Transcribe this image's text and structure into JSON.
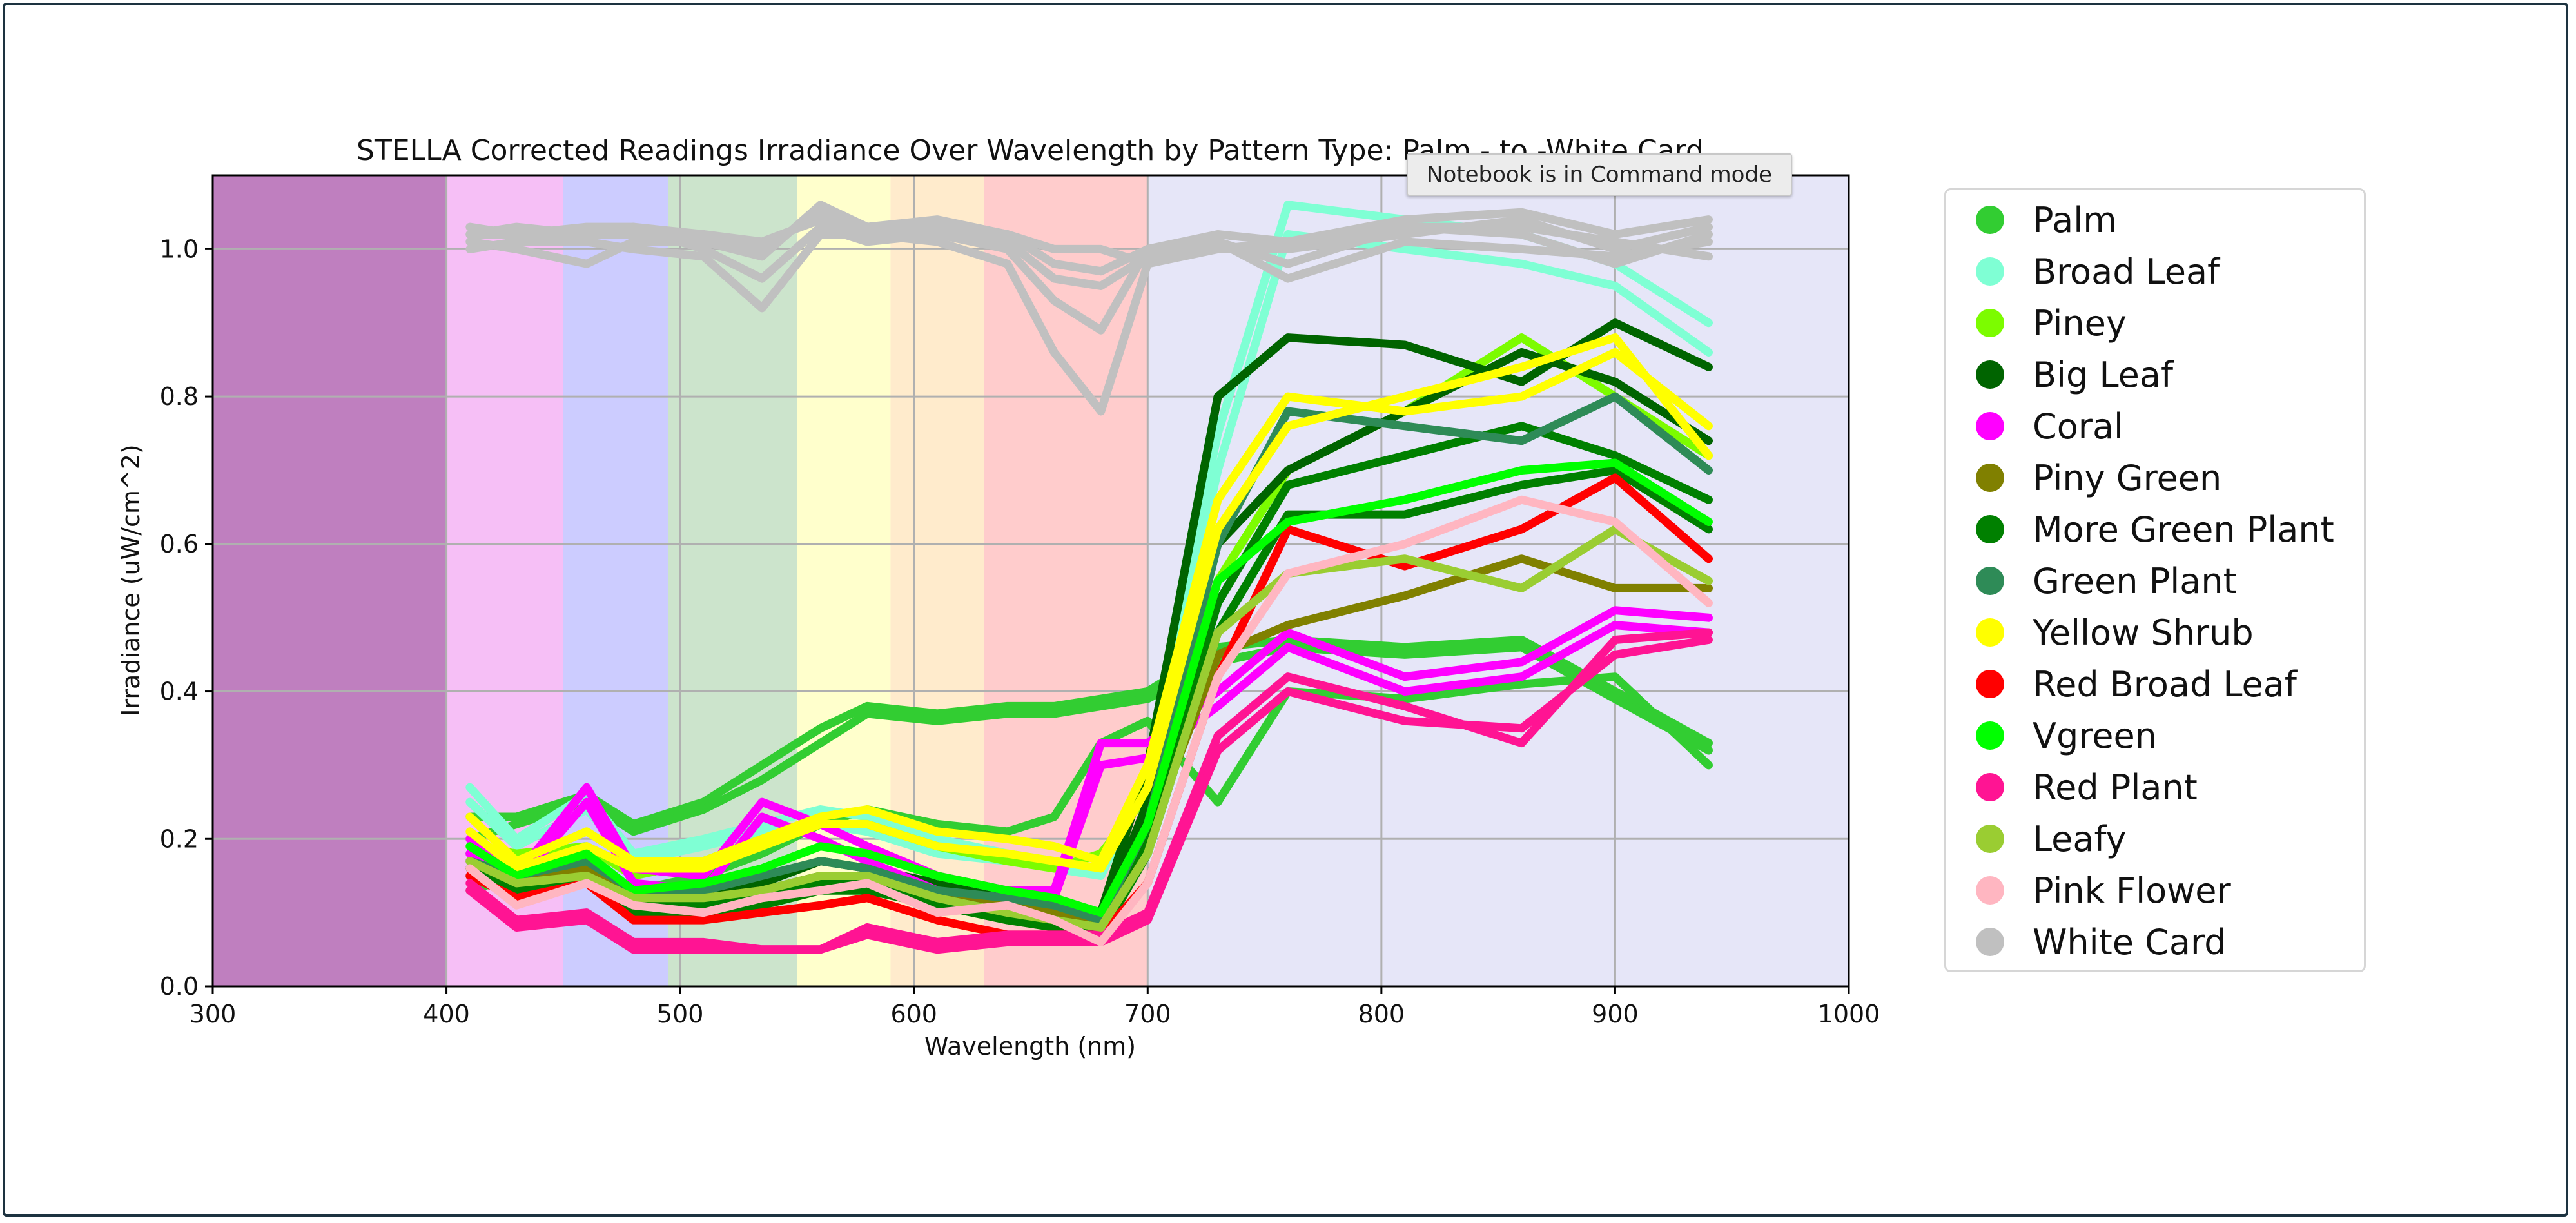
{
  "tooltip": "Notebook is in Command mode",
  "chart_data": {
    "type": "line",
    "title": "STELLA Corrected Readings Irradiance Over Wavelength by Pattern Type: Palm - to -White Card",
    "xlabel": "Wavelength (nm)",
    "ylabel": "Irradiance (uW/cm^2)",
    "xlim": [
      300,
      1000
    ],
    "ylim": [
      0,
      1.1
    ],
    "xticks": [
      300,
      400,
      500,
      600,
      700,
      800,
      900,
      1000
    ],
    "yticks": [
      0.0,
      0.2,
      0.4,
      0.6,
      0.8,
      1.0
    ],
    "grid": true,
    "legend_placement": "right, outside plot",
    "background_bands": [
      {
        "from": 300,
        "to": 400,
        "color": "#bf7fbf"
      },
      {
        "from": 400,
        "to": 450,
        "color": "#f6bff6"
      },
      {
        "from": 450,
        "to": 495,
        "color": "#ccccff"
      },
      {
        "from": 495,
        "to": 550,
        "color": "#cce4cc"
      },
      {
        "from": 550,
        "to": 590,
        "color": "#ffffcc"
      },
      {
        "from": 590,
        "to": 630,
        "color": "#ffebcc"
      },
      {
        "from": 630,
        "to": 700,
        "color": "#ffcccc"
      },
      {
        "from": 700,
        "to": 1000,
        "color": "#e6e6f8"
      }
    ],
    "x": [
      410,
      430,
      460,
      480,
      510,
      535,
      560,
      580,
      610,
      640,
      660,
      680,
      700,
      730,
      760,
      810,
      860,
      900,
      940
    ],
    "series": [
      {
        "name": "Palm",
        "color": "#32cd32",
        "lines": [
          [
            0.23,
            0.23,
            0.26,
            0.22,
            0.25,
            0.3,
            0.35,
            0.38,
            0.37,
            0.38,
            0.38,
            0.39,
            0.4,
            0.46,
            0.47,
            0.46,
            0.47,
            0.4,
            0.33
          ],
          [
            0.2,
            0.22,
            0.25,
            0.21,
            0.24,
            0.28,
            0.33,
            0.37,
            0.36,
            0.37,
            0.37,
            0.38,
            0.39,
            0.44,
            0.46,
            0.45,
            0.46,
            0.39,
            0.32
          ],
          [
            0.13,
            0.15,
            0.16,
            0.13,
            0.15,
            0.18,
            0.22,
            0.24,
            0.22,
            0.21,
            0.23,
            0.33,
            0.36,
            0.25,
            0.4,
            0.39,
            0.41,
            0.42,
            0.3
          ]
        ]
      },
      {
        "name": "Broad Leaf",
        "color": "#7fffd4",
        "lines": [
          [
            0.27,
            0.2,
            0.26,
            0.18,
            0.2,
            0.22,
            0.24,
            0.23,
            0.2,
            0.18,
            0.17,
            0.16,
            0.3,
            0.75,
            1.06,
            1.04,
            1.02,
            0.98,
            0.9
          ],
          [
            0.25,
            0.19,
            0.24,
            0.17,
            0.19,
            0.21,
            0.22,
            0.21,
            0.18,
            0.17,
            0.16,
            0.15,
            0.28,
            0.7,
            1.02,
            1.0,
            0.98,
            0.95,
            0.86
          ]
        ]
      },
      {
        "name": "Piney",
        "color": "#7cfc00",
        "lines": [
          [
            0.19,
            0.18,
            0.19,
            0.15,
            0.17,
            0.2,
            0.22,
            0.22,
            0.19,
            0.17,
            0.16,
            0.18,
            0.26,
            0.55,
            0.7,
            0.78,
            0.88,
            0.8,
            0.72
          ]
        ]
      },
      {
        "name": "Big Leaf",
        "color": "#006400",
        "lines": [
          [
            0.18,
            0.14,
            0.16,
            0.12,
            0.12,
            0.14,
            0.17,
            0.16,
            0.14,
            0.12,
            0.11,
            0.1,
            0.3,
            0.8,
            0.88,
            0.87,
            0.82,
            0.9,
            0.84
          ],
          [
            0.16,
            0.13,
            0.15,
            0.11,
            0.11,
            0.13,
            0.15,
            0.15,
            0.13,
            0.11,
            0.1,
            0.09,
            0.25,
            0.6,
            0.7,
            0.78,
            0.86,
            0.82,
            0.74
          ]
        ]
      },
      {
        "name": "Coral",
        "color": "#ff00ff",
        "lines": [
          [
            0.2,
            0.15,
            0.27,
            0.16,
            0.15,
            0.25,
            0.22,
            0.19,
            0.15,
            0.13,
            0.13,
            0.33,
            0.33,
            0.4,
            0.48,
            0.42,
            0.44,
            0.51,
            0.5
          ],
          [
            0.18,
            0.14,
            0.25,
            0.14,
            0.13,
            0.23,
            0.2,
            0.17,
            0.13,
            0.11,
            0.12,
            0.3,
            0.31,
            0.38,
            0.46,
            0.4,
            0.42,
            0.49,
            0.48
          ]
        ]
      },
      {
        "name": "Piny Green",
        "color": "#808000",
        "lines": [
          [
            0.17,
            0.14,
            0.16,
            0.12,
            0.12,
            0.13,
            0.15,
            0.15,
            0.12,
            0.11,
            0.1,
            0.08,
            0.2,
            0.45,
            0.49,
            0.53,
            0.58,
            0.54,
            0.54
          ]
        ]
      },
      {
        "name": "More Green Plant",
        "color": "#008000",
        "lines": [
          [
            0.16,
            0.13,
            0.15,
            0.11,
            0.11,
            0.12,
            0.14,
            0.14,
            0.12,
            0.1,
            0.09,
            0.08,
            0.2,
            0.52,
            0.68,
            0.72,
            0.76,
            0.72,
            0.66
          ],
          [
            0.15,
            0.12,
            0.14,
            0.1,
            0.1,
            0.11,
            0.13,
            0.13,
            0.11,
            0.09,
            0.08,
            0.07,
            0.18,
            0.48,
            0.64,
            0.64,
            0.68,
            0.7,
            0.62
          ]
        ]
      },
      {
        "name": "Green Plant",
        "color": "#2e8b57",
        "lines": [
          [
            0.17,
            0.15,
            0.17,
            0.13,
            0.13,
            0.15,
            0.17,
            0.16,
            0.13,
            0.12,
            0.11,
            0.09,
            0.22,
            0.6,
            0.78,
            0.76,
            0.74,
            0.8,
            0.7
          ]
        ]
      },
      {
        "name": "Yellow Shrub",
        "color": "#ffff00",
        "lines": [
          [
            0.23,
            0.17,
            0.21,
            0.17,
            0.17,
            0.2,
            0.23,
            0.24,
            0.21,
            0.2,
            0.19,
            0.17,
            0.3,
            0.66,
            0.8,
            0.78,
            0.8,
            0.86,
            0.76
          ],
          [
            0.21,
            0.16,
            0.19,
            0.16,
            0.16,
            0.19,
            0.22,
            0.22,
            0.19,
            0.18,
            0.17,
            0.16,
            0.27,
            0.62,
            0.76,
            0.8,
            0.84,
            0.88,
            0.72
          ]
        ]
      },
      {
        "name": "Red Broad Leaf",
        "color": "#ff0000",
        "lines": [
          [
            0.15,
            0.12,
            0.14,
            0.09,
            0.09,
            0.1,
            0.11,
            0.12,
            0.09,
            0.07,
            0.07,
            0.07,
            0.14,
            0.42,
            0.62,
            0.57,
            0.62,
            0.69,
            0.58
          ]
        ]
      },
      {
        "name": "Vgreen",
        "color": "#00ff00",
        "lines": [
          [
            0.19,
            0.15,
            0.18,
            0.13,
            0.14,
            0.16,
            0.19,
            0.18,
            0.15,
            0.13,
            0.12,
            0.1,
            0.22,
            0.55,
            0.63,
            0.66,
            0.7,
            0.71,
            0.63
          ]
        ]
      },
      {
        "name": "Red Plant",
        "color": "#ff1493",
        "lines": [
          [
            0.14,
            0.09,
            0.1,
            0.06,
            0.06,
            0.05,
            0.05,
            0.08,
            0.06,
            0.07,
            0.07,
            0.07,
            0.1,
            0.34,
            0.42,
            0.38,
            0.33,
            0.47,
            0.48
          ],
          [
            0.13,
            0.08,
            0.09,
            0.05,
            0.05,
            0.05,
            0.05,
            0.07,
            0.05,
            0.06,
            0.06,
            0.06,
            0.09,
            0.32,
            0.4,
            0.36,
            0.35,
            0.45,
            0.47
          ]
        ]
      },
      {
        "name": "Leafy",
        "color": "#9acd32",
        "lines": [
          [
            0.17,
            0.14,
            0.15,
            0.12,
            0.12,
            0.13,
            0.15,
            0.15,
            0.12,
            0.1,
            0.09,
            0.08,
            0.18,
            0.48,
            0.56,
            0.58,
            0.54,
            0.62,
            0.55
          ]
        ]
      },
      {
        "name": "Pink Flower",
        "color": "#ffb6c1",
        "lines": [
          [
            0.16,
            0.11,
            0.14,
            0.11,
            0.1,
            0.12,
            0.13,
            0.14,
            0.1,
            0.11,
            0.09,
            0.06,
            0.14,
            0.42,
            0.56,
            0.6,
            0.66,
            0.63,
            0.52
          ]
        ]
      },
      {
        "name": "White Card",
        "color": "#c0c0c0",
        "lines": [
          [
            1.02,
            1.02,
            1.02,
            1.02,
            1.02,
            1.01,
            1.04,
            1.02,
            1.03,
            1.02,
            1.0,
            1.0,
            0.98,
            1.0,
            1.0,
            1.02,
            1.04,
            1.0,
            1.03
          ],
          [
            1.01,
            1.0,
            0.98,
            1.01,
            1.01,
            0.99,
            1.06,
            1.03,
            1.02,
            1.01,
            0.96,
            0.95,
            0.99,
            1.01,
            0.98,
            1.03,
            1.02,
            0.98,
            1.02
          ],
          [
            1.03,
            1.02,
            1.03,
            1.03,
            1.0,
            0.96,
            1.03,
            1.01,
            1.02,
            1.0,
            0.93,
            0.89,
            1.0,
            1.0,
            1.01,
            1.04,
            1.05,
            1.02,
            1.04
          ],
          [
            1.0,
            1.01,
            1.01,
            1.0,
            0.99,
            0.92,
            1.02,
            1.02,
            1.01,
            0.98,
            0.86,
            0.78,
            0.98,
            1.01,
            0.96,
            1.01,
            1.0,
            0.99,
            1.01
          ],
          [
            1.02,
            1.03,
            1.02,
            1.03,
            1.02,
            1.0,
            1.05,
            1.03,
            1.04,
            1.02,
            0.98,
            0.97,
            1.0,
            1.02,
            1.01,
            1.03,
            1.03,
            1.01,
            0.99
          ]
        ]
      }
    ]
  }
}
